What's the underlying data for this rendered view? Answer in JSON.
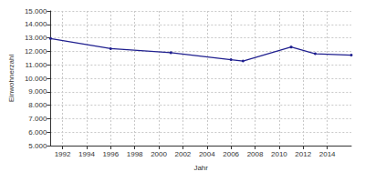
{
  "chart_data": {
    "type": "line",
    "x_label": "Jahr",
    "y_label": "Einwohnerzahl",
    "x": [
      1991,
      1996,
      2001,
      2006,
      2007,
      2011,
      2013,
      2016
    ],
    "values": [
      12950,
      12200,
      11900,
      11380,
      11280,
      12320,
      11820,
      11720
    ],
    "color": "#1f1f8f",
    "marker": "circle",
    "xlim": [
      1991,
      2016
    ],
    "xticks": [
      1992,
      1994,
      1996,
      1998,
      2000,
      2002,
      2004,
      2006,
      2008,
      2010,
      2012,
      2014
    ],
    "ylim": [
      5000,
      15000
    ],
    "yticks": [
      {
        "value": 5000,
        "label": "5.000"
      },
      {
        "value": 6000,
        "label": "6.000"
      },
      {
        "value": 7000,
        "label": "7.000"
      },
      {
        "value": 8000,
        "label": "8.000"
      },
      {
        "value": 9000,
        "label": "9.000"
      },
      {
        "value": 10000,
        "label": "10.000"
      },
      {
        "value": 11000,
        "label": "11.000"
      },
      {
        "value": 12000,
        "label": "12.000"
      },
      {
        "value": 13000,
        "label": "13.000"
      },
      {
        "value": 14000,
        "label": "14.000"
      },
      {
        "value": 15000,
        "label": "15.000"
      }
    ],
    "grid": true
  }
}
